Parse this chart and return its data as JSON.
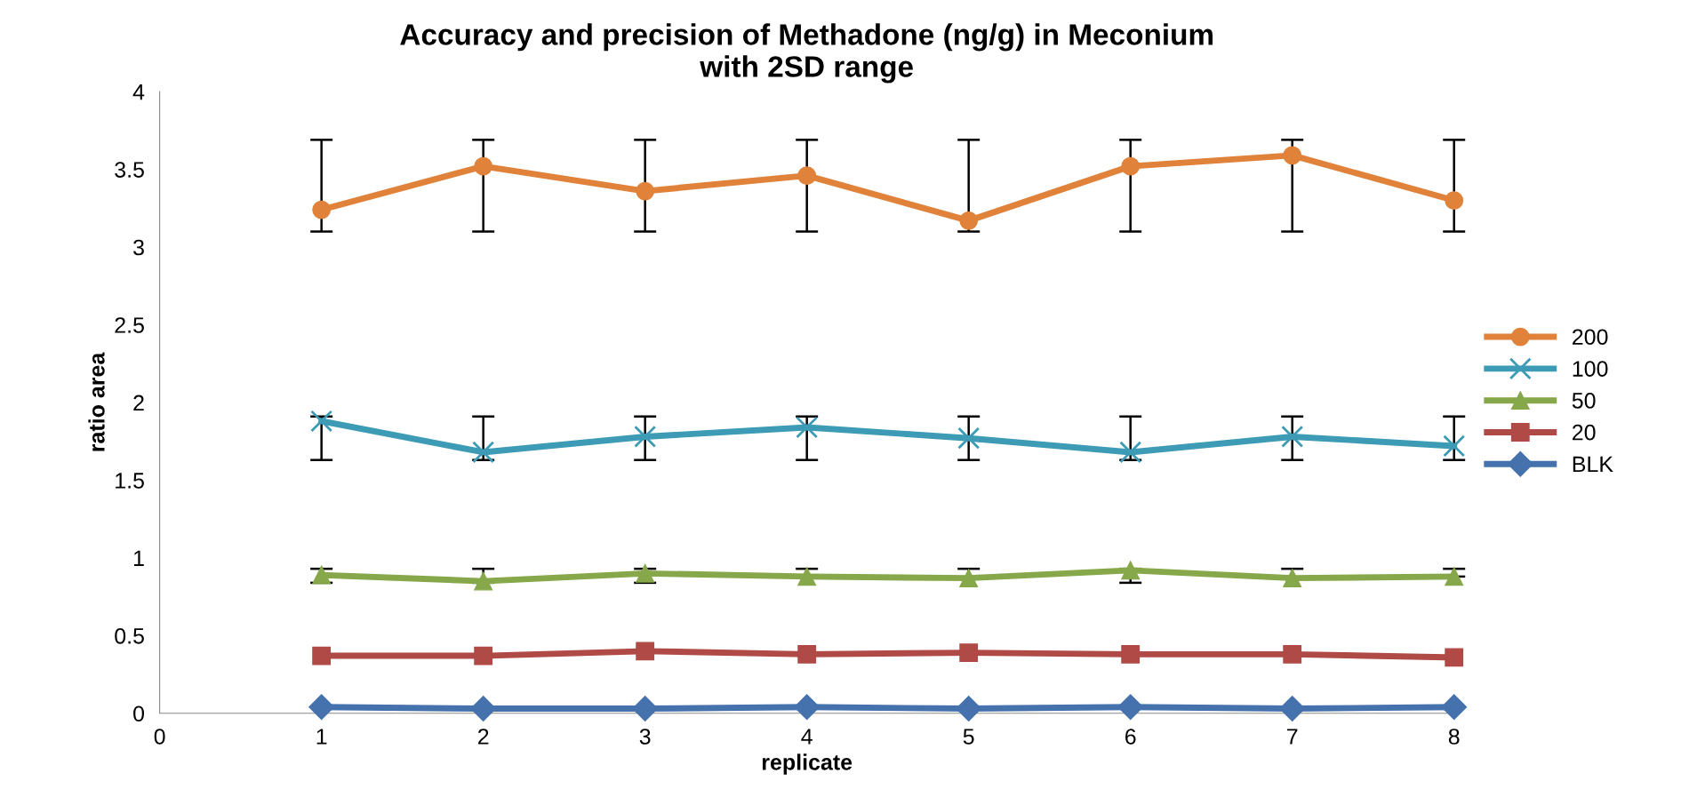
{
  "chart_data": {
    "type": "line",
    "title": "Accuracy and precision of Methadone (ng/g) in Meconium\nwith 2SD range",
    "xlabel": "replicate",
    "ylabel": "ratio area",
    "x": [
      1,
      2,
      3,
      4,
      5,
      6,
      7,
      8
    ],
    "series": [
      {
        "name": "200",
        "color": "#e0823a",
        "marker": "circle",
        "values": [
          3.24,
          3.52,
          3.36,
          3.46,
          3.17,
          3.52,
          3.59,
          3.3
        ],
        "errors": [
          [
            3.1,
            3.69
          ],
          [
            3.1,
            3.69
          ],
          [
            3.1,
            3.69
          ],
          [
            3.1,
            3.69
          ],
          [
            3.1,
            3.69
          ],
          [
            3.1,
            3.69
          ],
          [
            3.1,
            3.69
          ],
          [
            3.1,
            3.69
          ]
        ]
      },
      {
        "name": "100",
        "color": "#3d9bb5",
        "marker": "cross",
        "values": [
          1.88,
          1.68,
          1.78,
          1.84,
          1.77,
          1.68,
          1.78,
          1.72
        ],
        "errors": [
          [
            1.63,
            1.91
          ],
          [
            1.63,
            1.91
          ],
          [
            1.63,
            1.91
          ],
          [
            1.63,
            1.91
          ],
          [
            1.63,
            1.91
          ],
          [
            1.63,
            1.91
          ],
          [
            1.63,
            1.91
          ],
          [
            1.63,
            1.91
          ]
        ]
      },
      {
        "name": "50",
        "color": "#86a84a",
        "marker": "triangle",
        "values": [
          0.89,
          0.85,
          0.9,
          0.88,
          0.87,
          0.92,
          0.87,
          0.88
        ],
        "errors": [
          [
            0.84,
            0.93
          ],
          [
            0.84,
            0.93
          ],
          [
            0.84,
            0.93
          ],
          [
            0.88,
            0.93
          ],
          [
            0.87,
            0.93
          ],
          [
            0.84,
            0.93
          ],
          [
            0.87,
            0.93
          ],
          [
            0.88,
            0.93
          ]
        ]
      },
      {
        "name": "20",
        "color": "#b04a46",
        "marker": "square",
        "values": [
          0.37,
          0.37,
          0.4,
          0.38,
          0.39,
          0.38,
          0.38,
          0.36
        ]
      },
      {
        "name": "BLK",
        "color": "#4572ad",
        "marker": "diamond",
        "values": [
          0.04,
          0.03,
          0.03,
          0.04,
          0.03,
          0.04,
          0.03,
          0.04
        ]
      }
    ],
    "xlim": [
      0,
      8
    ],
    "xticks": [
      0,
      1,
      2,
      3,
      4,
      5,
      6,
      7,
      8
    ],
    "ylim": [
      0,
      4
    ],
    "yticks": [
      0,
      0.5,
      1,
      1.5,
      2,
      2.5,
      3,
      3.5,
      4
    ],
    "grid": false,
    "legend": "right",
    "line_style": "solid"
  }
}
